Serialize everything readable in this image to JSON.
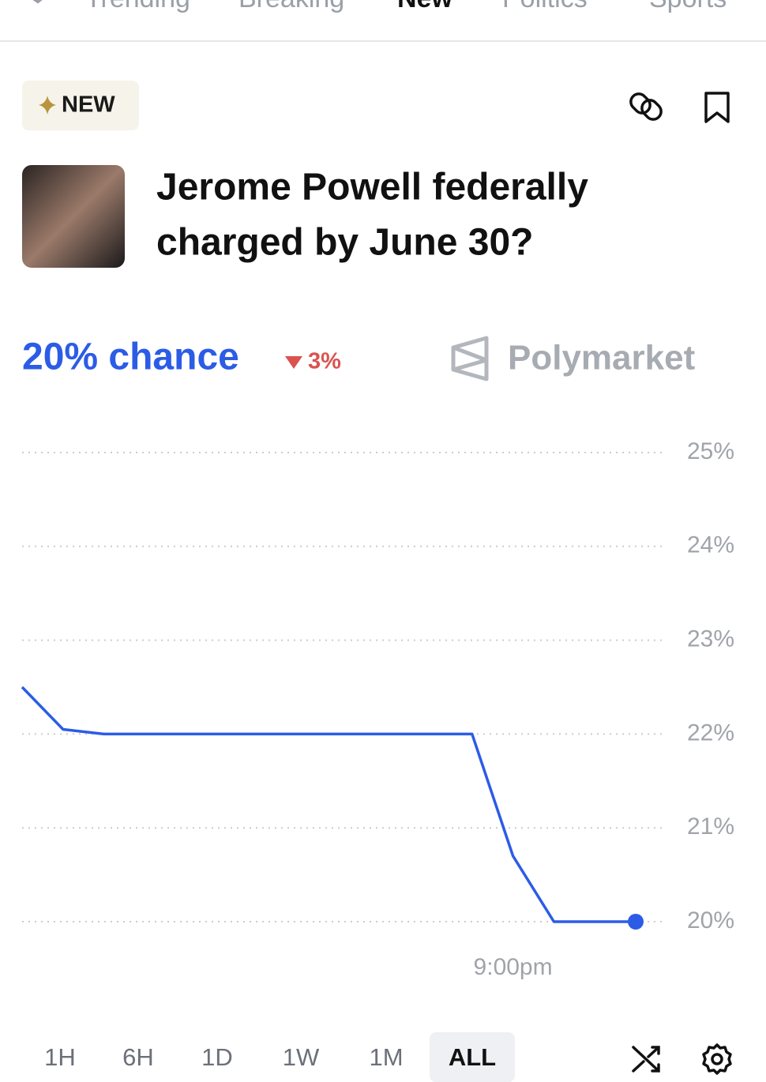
{
  "nav": {
    "items": [
      "Trending",
      "Breaking",
      "New",
      "Politics",
      "Sports"
    ],
    "active_index": 2
  },
  "badge": "NEW",
  "title_lines": [
    "Jerome Powell federally",
    "charged by June 30?"
  ],
  "chance": "20% chance",
  "change": "3%",
  "brand": "Polymarket",
  "chart_data": {
    "type": "line",
    "categories": [
      null,
      null,
      null,
      null,
      null,
      null,
      null,
      null,
      null,
      null,
      null,
      null,
      "9:00pm",
      null,
      null,
      null
    ],
    "values": [
      22.5,
      22.05,
      22,
      22,
      22,
      22,
      22,
      22,
      22,
      22,
      22,
      22,
      20.7,
      20,
      20,
      20
    ],
    "color": "#2c5ce6",
    "ylim": [
      20,
      25
    ],
    "yticks": [
      {
        "value": 20,
        "label": "20%"
      },
      {
        "value": 21,
        "label": "21%"
      },
      {
        "value": 22,
        "label": "22%"
      },
      {
        "value": 23,
        "label": "23%"
      },
      {
        "value": 24,
        "label": "24%"
      },
      {
        "value": 25,
        "label": "25%"
      }
    ],
    "grid": true
  },
  "time_ranges": {
    "options": [
      "1H",
      "6H",
      "1D",
      "1W",
      "1M",
      "ALL"
    ],
    "selected_index": 5
  }
}
